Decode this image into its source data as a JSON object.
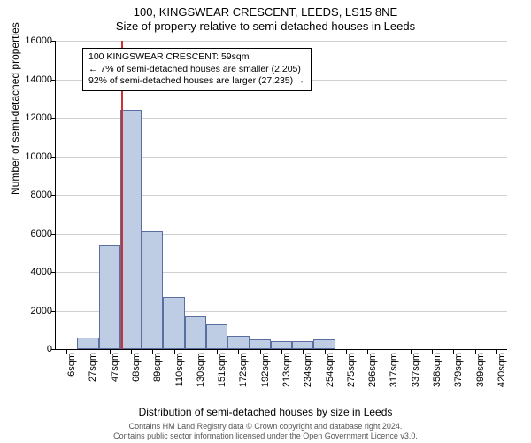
{
  "title": "100, KINGSWEAR CRESCENT, LEEDS, LS15 8NE",
  "subtitle": "Size of property relative to semi-detached houses in Leeds",
  "chart": {
    "type": "histogram",
    "ylabel": "Number of semi-detached properties",
    "xlabel": "Distribution of semi-detached houses by size in Leeds",
    "ylim": [
      0,
      16000
    ],
    "ytick_step": 2000,
    "yticks": [
      0,
      2000,
      4000,
      6000,
      8000,
      10000,
      12000,
      14000,
      16000
    ],
    "xtick_labels": [
      "6sqm",
      "27sqm",
      "47sqm",
      "68sqm",
      "89sqm",
      "110sqm",
      "130sqm",
      "151sqm",
      "172sqm",
      "192sqm",
      "213sqm",
      "234sqm",
      "254sqm",
      "275sqm",
      "296sqm",
      "317sqm",
      "337sqm",
      "358sqm",
      "379sqm",
      "399sqm",
      "420sqm"
    ],
    "bar_values": [
      0,
      600,
      5400,
      12400,
      6100,
      2700,
      1700,
      1300,
      700,
      500,
      400,
      400,
      500,
      0,
      0,
      0,
      0,
      0,
      0,
      0,
      0
    ],
    "bar_color": "#becde4",
    "bar_border_color": "#5a6fa0",
    "grid_color": "#d0d0d0",
    "background_color": "#ffffff",
    "marker_position_sqm": 59,
    "marker_color": "#d03030",
    "info_box": {
      "line1": "100 KINGSWEAR CRESCENT: 59sqm",
      "line2": "← 7% of semi-detached houses are smaller (2,205)",
      "line3": "92% of semi-detached houses are larger (27,235) →"
    },
    "title_fontsize": 13,
    "label_fontsize": 12,
    "tick_fontsize": 11
  },
  "footnote": {
    "line1": "Contains HM Land Registry data © Crown copyright and database right 2024.",
    "line2": "Contains public sector information licensed under the Open Government Licence v3.0."
  }
}
